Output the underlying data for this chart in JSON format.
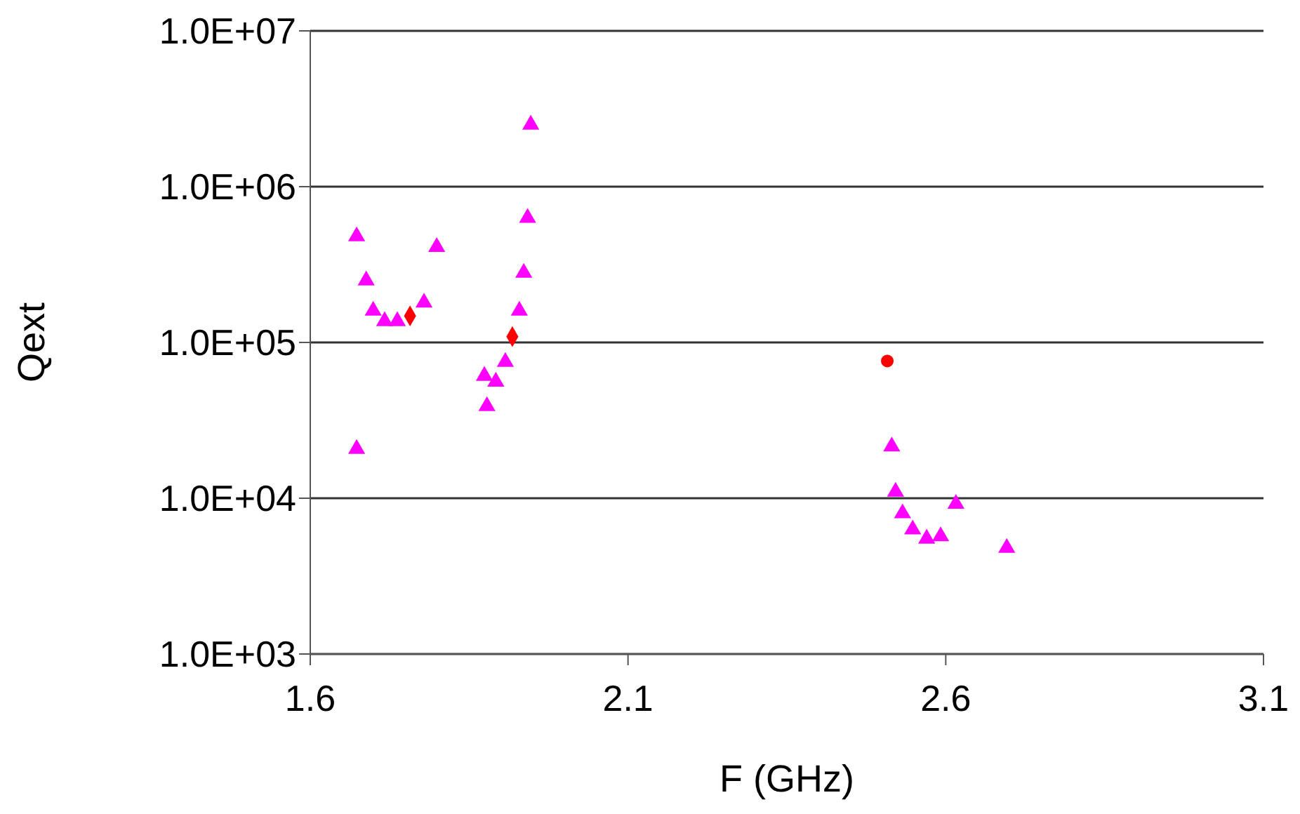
{
  "chart_data": {
    "type": "scatter",
    "xlabel": "F (GHz)",
    "ylabel": "Qext",
    "log": "y",
    "grid": "y",
    "xlim": [
      1.6,
      3.1
    ],
    "xticks": [
      1.6,
      2.1,
      2.6,
      3.1
    ],
    "ylim": [
      1000,
      10000000
    ],
    "yticks": [
      {
        "value": 1000,
        "label": "1.0E+03"
      },
      {
        "value": 10000,
        "label": "1.0E+04"
      },
      {
        "value": 100000,
        "label": "1.0E+05"
      },
      {
        "value": 1000000,
        "label": "1.0E+06"
      },
      {
        "value": 10000000,
        "label": "1.0E+07"
      }
    ],
    "series": [
      {
        "color": "#ff00ff",
        "marker": "triangle",
        "x": [
          1.673,
          1.688,
          1.699,
          1.717,
          1.737,
          1.779,
          1.799,
          1.673,
          1.874,
          1.892,
          1.878,
          1.907,
          1.929,
          1.936,
          1.942,
          1.947,
          2.515,
          2.521,
          2.532,
          2.548,
          2.57,
          2.592,
          2.616,
          2.696
        ],
        "values": [
          480000,
          250000,
          160000,
          137000,
          137000,
          180000,
          410000,
          20700,
          61000,
          56000,
          39000,
          75000,
          160000,
          280000,
          630000,
          2500000,
          21500,
          11000,
          8000,
          6300,
          5500,
          5700,
          9200,
          4800
        ]
      },
      {
        "color": "#ff0000",
        "marker": "diamond",
        "x": [
          1.757
        ],
        "values": [
          148000
        ]
      },
      {
        "color": "#ff0000",
        "marker": "diamond",
        "x": [
          1.918
        ],
        "values": [
          109000
        ]
      },
      {
        "color": "#ff0000",
        "marker": "circle",
        "x": [
          2.508
        ],
        "values": [
          76000
        ]
      }
    ]
  }
}
